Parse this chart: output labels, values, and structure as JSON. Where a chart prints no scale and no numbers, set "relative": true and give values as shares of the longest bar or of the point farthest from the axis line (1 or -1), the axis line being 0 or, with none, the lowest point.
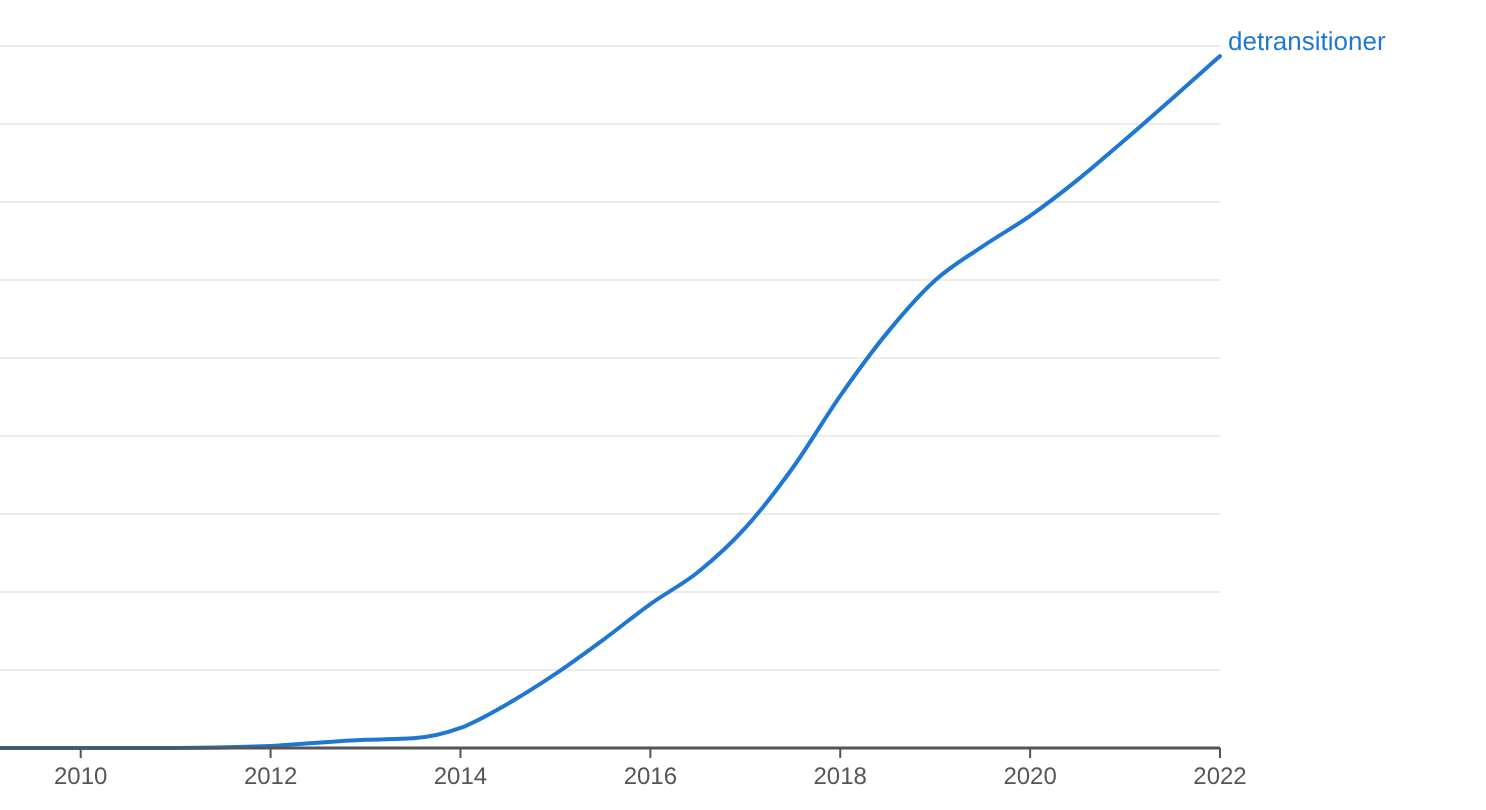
{
  "chart_data": {
    "type": "line",
    "relative": true,
    "grid": true,
    "xlim": [
      2009.15,
      2022
    ],
    "xticks": [
      2010,
      2012,
      2014,
      2016,
      2018,
      2020,
      2022
    ],
    "x": [
      2009.15,
      2010,
      2011,
      2012,
      2013,
      2013.5,
      2014,
      2014.5,
      2015,
      2015.5,
      2016,
      2016.5,
      2017,
      2017.5,
      2018,
      2018.5,
      2019,
      2019.5,
      2020,
      2020.5,
      2021,
      2021.5,
      2022
    ],
    "series": [
      {
        "name": "detransitioner",
        "color": "#1f77d4",
        "values": [
          0,
          0,
          0,
          0.003,
          0.012,
          0.014,
          0.029,
          0.064,
          0.107,
          0.156,
          0.208,
          0.254,
          0.318,
          0.405,
          0.509,
          0.601,
          0.676,
          0.725,
          0.769,
          0.821,
          0.879,
          0.939,
          1
        ]
      }
    ]
  }
}
